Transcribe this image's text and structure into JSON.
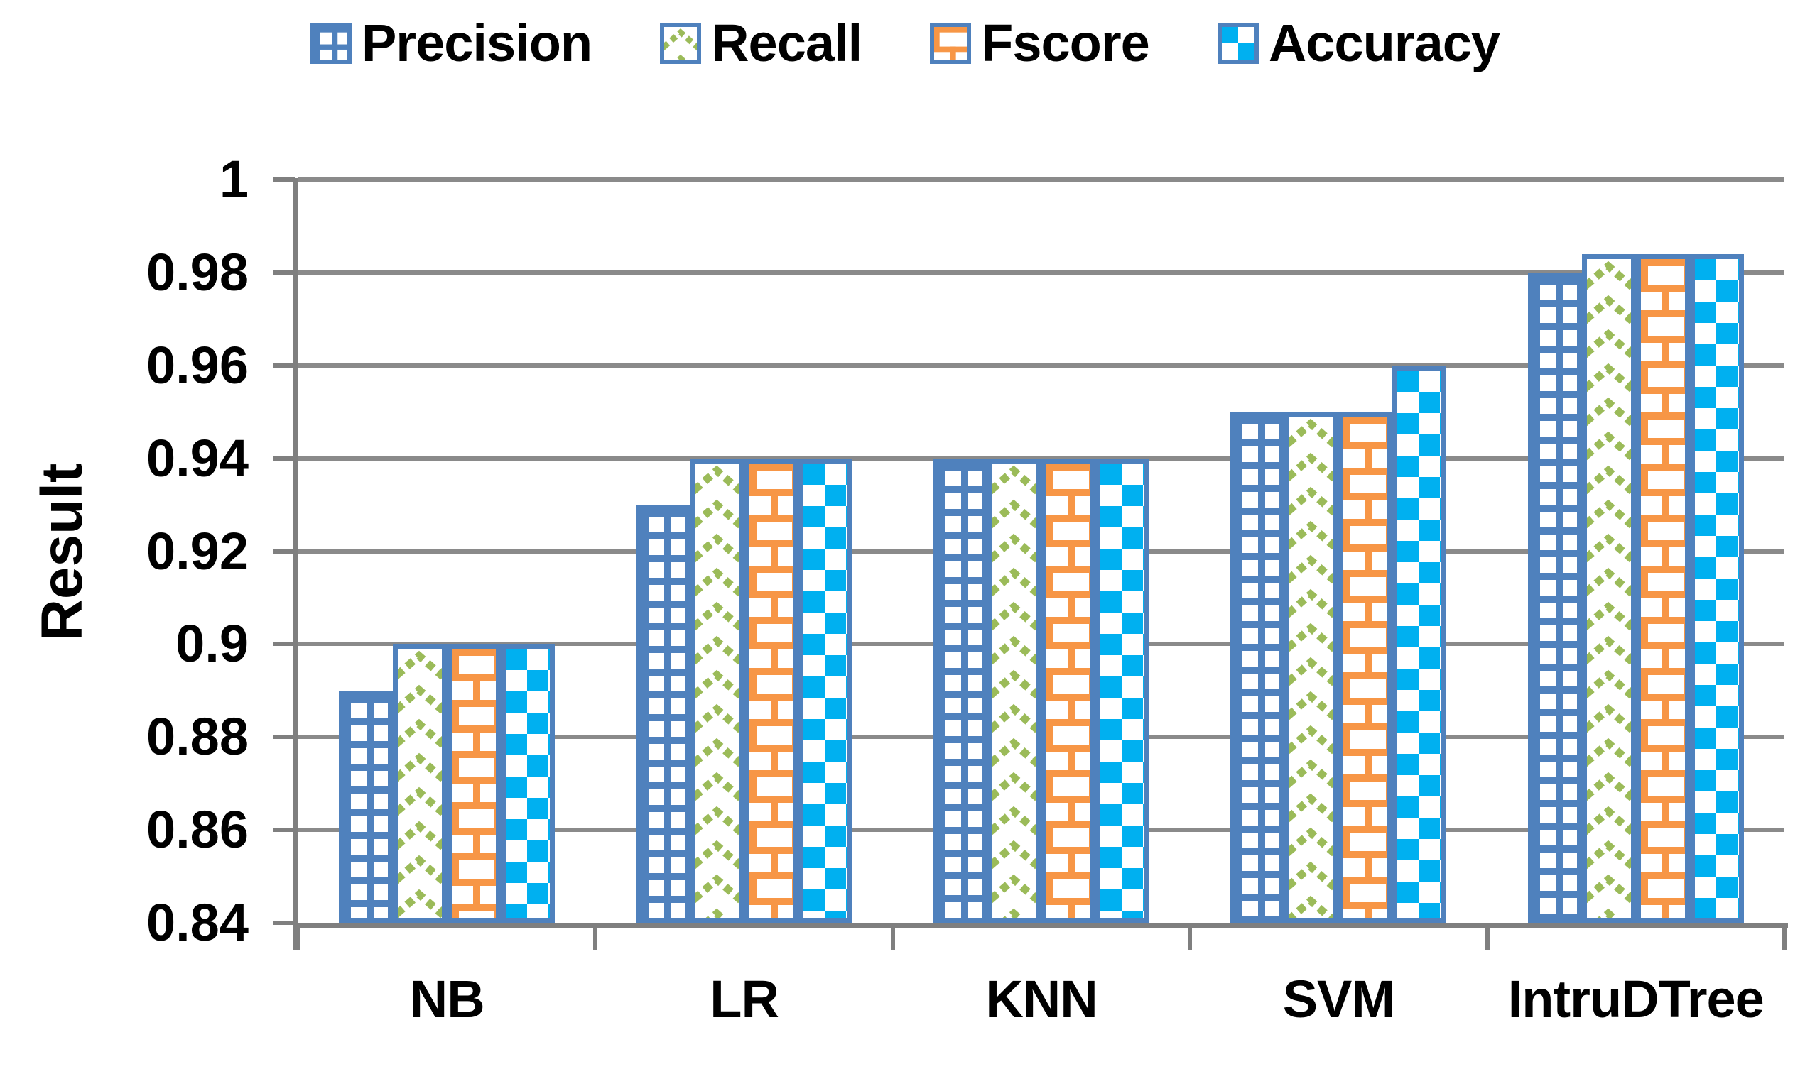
{
  "figure": {
    "background": "#ffffff",
    "text_color": "#000000"
  },
  "legend": {
    "position": "top",
    "items": [
      {
        "label": "Precision",
        "pattern": "grid",
        "swatch_icon": "grid-pattern-swatch",
        "color": "#4F81BD"
      },
      {
        "label": "Recall",
        "pattern": "chevron",
        "swatch_icon": "chevron-pattern-swatch",
        "color": "#9BBB59"
      },
      {
        "label": "Fscore",
        "pattern": "brick",
        "swatch_icon": "brick-pattern-swatch",
        "color": "#F79646"
      },
      {
        "label": "Accuracy",
        "pattern": "checker",
        "swatch_icon": "checker-pattern-swatch",
        "color": "#00B0F0"
      }
    ]
  },
  "axes": {
    "y_title": "Result",
    "y_tick_labels": [
      "0.84",
      "0.86",
      "0.88",
      "0.9",
      "0.92",
      "0.94",
      "0.96",
      "0.98",
      "1"
    ],
    "x_tick_labels": [
      "NB",
      "LR",
      "KNN",
      "SVM",
      "IntruDTree"
    ],
    "gridline_color": "#8A8A8A",
    "axis_line_color": "#7F7F7F"
  },
  "chart_data": {
    "type": "bar",
    "title": "",
    "xlabel": "",
    "ylabel": "Result",
    "categories": [
      "NB",
      "LR",
      "KNN",
      "SVM",
      "IntruDTree"
    ],
    "series": [
      {
        "name": "Precision",
        "pattern": "grid",
        "pattern_color": "#4F81BD",
        "values": [
          0.89,
          0.93,
          0.94,
          0.95,
          0.98
        ]
      },
      {
        "name": "Recall",
        "pattern": "chevron",
        "pattern_color": "#9BBB59",
        "values": [
          0.9,
          0.94,
          0.94,
          0.95,
          0.984
        ]
      },
      {
        "name": "Fscore",
        "pattern": "brick",
        "pattern_color": "#F79646",
        "values": [
          0.9,
          0.94,
          0.94,
          0.95,
          0.984
        ]
      },
      {
        "name": "Accuracy",
        "pattern": "checker",
        "pattern_color": "#00B0F0",
        "values": [
          0.9,
          0.94,
          0.94,
          0.96,
          0.984
        ]
      }
    ],
    "ylim": [
      0.84,
      1.0
    ],
    "ytick_step": 0.02,
    "grid": true,
    "legend_position": "top",
    "bar_border_color": "#4F81BD"
  }
}
